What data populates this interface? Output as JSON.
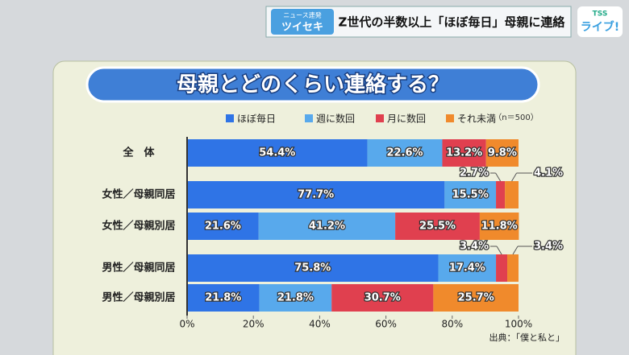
{
  "header": {
    "corner_tag": "ニュース連発",
    "corner_name": "ツイセキ",
    "headline": "Z世代の半数以上「ほぼ毎日」母親に連絡",
    "logo_top": "TSS",
    "logo": "ライブ!"
  },
  "chart_data": {
    "type": "stacked-barh",
    "title": "母親とどのくらい連絡する？",
    "note": "（n＝500）",
    "source": "出典：「僕と私と」",
    "categories": [
      "全　体",
      "女性／母親同居",
      "女性／母親別居",
      "男性／母親同居",
      "男性／母親別居"
    ],
    "series": [
      {
        "name": "ほぼ毎日",
        "color": "#2f74e6",
        "values": [
          54.4,
          77.7,
          21.6,
          75.8,
          21.8
        ],
        "value_labels": [
          "54.4%",
          "77.7%",
          "21.6%",
          "75.8%",
          "21.8%"
        ]
      },
      {
        "name": "週に数回",
        "color": "#58a9ec",
        "values": [
          22.6,
          15.5,
          41.2,
          17.4,
          21.8
        ],
        "value_labels": [
          "22.6%",
          "15.5%",
          "41.2%",
          "17.4%",
          "21.8%"
        ]
      },
      {
        "name": "月に数回",
        "color": "#e0404f",
        "values": [
          13.2,
          2.7,
          25.5,
          3.4,
          30.7
        ],
        "value_labels": [
          "13.2%",
          "2.7%",
          "25.5%",
          "3.4%",
          "30.7%"
        ]
      },
      {
        "name": "それ未満",
        "color": "#f08a2c",
        "values": [
          9.8,
          4.1,
          11.8,
          3.4,
          25.7
        ],
        "value_labels": [
          "9.8%",
          "4.1%",
          "11.8%",
          "3.4%",
          "25.7%"
        ]
      }
    ],
    "xlim": [
      0,
      100
    ],
    "xticks": [
      {
        "value": 0,
        "label": "0%"
      },
      {
        "value": 20,
        "label": "20%"
      },
      {
        "value": 40,
        "label": "40%"
      },
      {
        "value": 60,
        "label": "60%"
      },
      {
        "value": 80,
        "label": "80%"
      },
      {
        "value": 100,
        "label": "100%"
      }
    ]
  }
}
